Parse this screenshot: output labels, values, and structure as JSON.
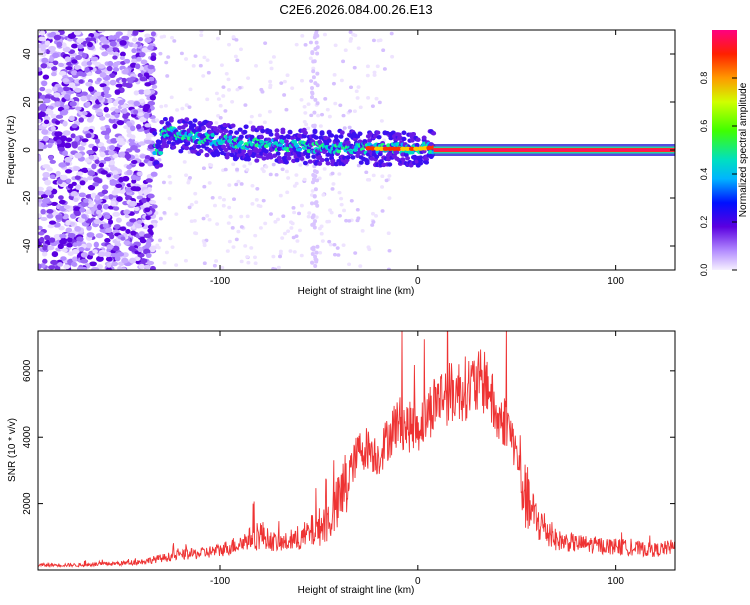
{
  "title": "C2E6.2026.084.00.26.E13",
  "chart_data": [
    {
      "type": "heatmap",
      "title": "",
      "xlabel": "Height of straight line (km)",
      "ylabel": "Frequency (Hz)",
      "xlim": [
        -192,
        130
      ],
      "ylim": [
        -50,
        50
      ],
      "xticks": [
        -100,
        0,
        100
      ],
      "yticks": [
        -40,
        -20,
        0,
        20,
        40
      ],
      "grid": false,
      "colorbar": {
        "label": "Normalized spectral amplitude",
        "range": [
          0,
          1
        ],
        "ticks": [
          0.0,
          0.2,
          0.4,
          0.6,
          0.8
        ]
      },
      "signal_ridge": [
        {
          "x": -130,
          "y": 8
        },
        {
          "x": -110,
          "y": 5
        },
        {
          "x": -90,
          "y": 3
        },
        {
          "x": -70,
          "y": 2
        },
        {
          "x": -50,
          "y": 1
        },
        {
          "x": -30,
          "y": 1
        },
        {
          "x": -20,
          "y": 0.5
        },
        {
          "x": 0,
          "y": 0.5
        },
        {
          "x": 8,
          "y": 1
        },
        {
          "x": 130,
          "y": 0
        }
      ]
    },
    {
      "type": "line",
      "title": "",
      "xlabel": "Height of straight line (km)",
      "ylabel": "SNR (10 * v/v)",
      "xlim": [
        -192,
        130
      ],
      "ylim": [
        0,
        7200
      ],
      "xticks": [
        -100,
        0,
        100
      ],
      "yticks": [
        2000,
        4000,
        6000
      ],
      "series": [
        {
          "name": "",
          "color": "#ee3333",
          "x": [
            -192,
            -170,
            -150,
            -140,
            -130,
            -120,
            -110,
            -100,
            -90,
            -80,
            -75,
            -70,
            -60,
            -50,
            -45,
            -40,
            -35,
            -30,
            -25,
            -20,
            -15,
            -10,
            -5,
            0,
            5,
            10,
            15,
            20,
            25,
            30,
            35,
            40,
            45,
            50,
            55,
            60,
            70,
            80,
            90,
            100,
            110,
            120,
            130
          ],
          "y": [
            150,
            150,
            200,
            250,
            350,
            450,
            500,
            600,
            800,
            1100,
            900,
            800,
            900,
            1300,
            1500,
            2000,
            2800,
            3600,
            3700,
            3400,
            4000,
            4500,
            4300,
            4300,
            4700,
            5200,
            5300,
            5400,
            5500,
            5600,
            5700,
            4500,
            4500,
            3500,
            2000,
            1500,
            900,
            800,
            750,
            700,
            650,
            600,
            700
          ]
        }
      ]
    }
  ]
}
